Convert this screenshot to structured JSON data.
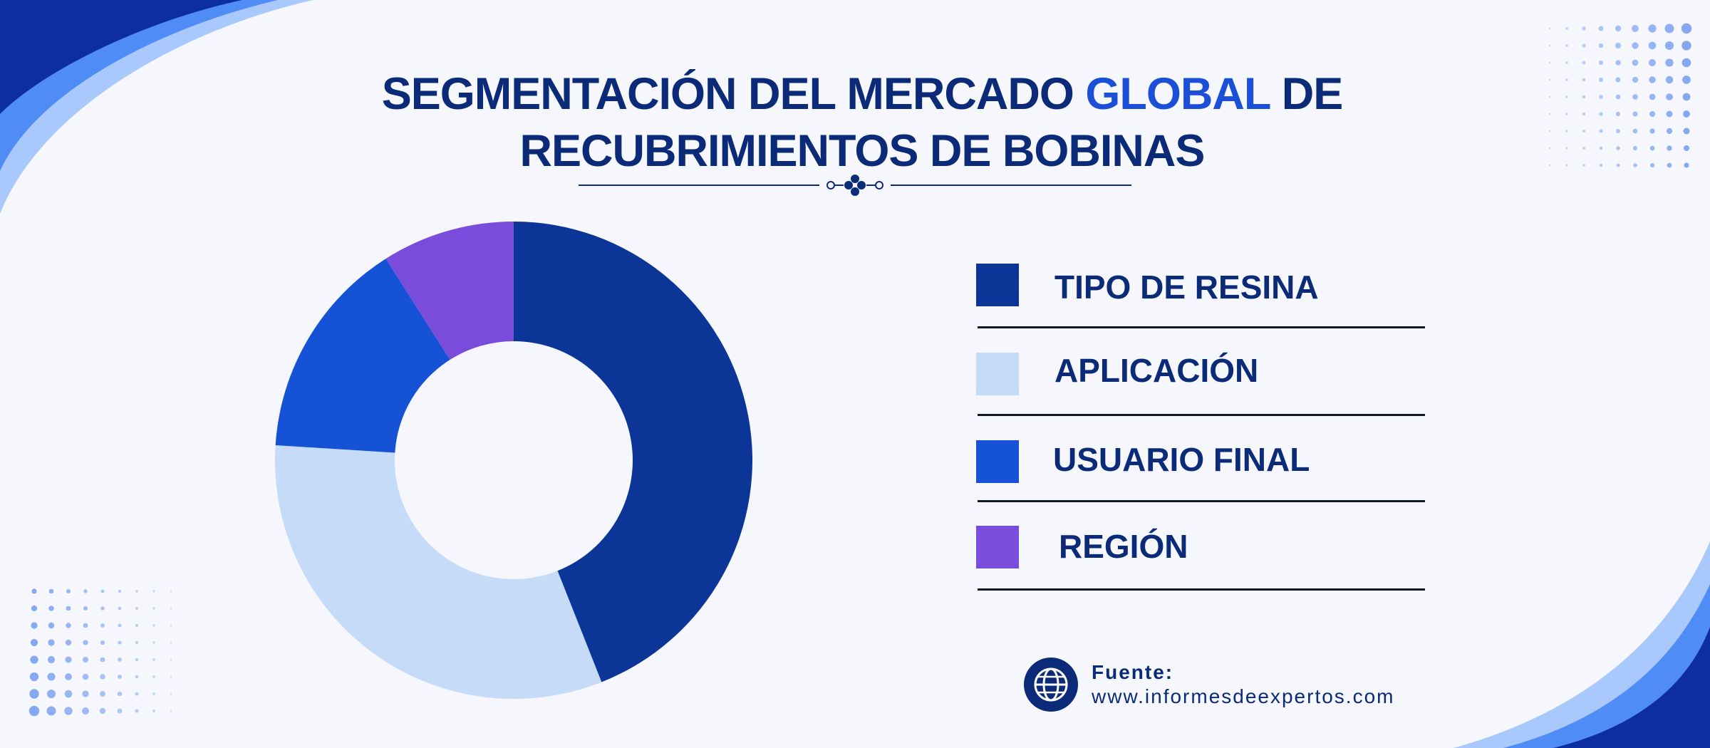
{
  "title": {
    "line1_before": "SEGMENTACIÓN DEL MERCADO ",
    "line1_highlight": "GLOBAL",
    "line1_after": " DE",
    "line2": "RECUBRIMIENTOS DE BOBINAS"
  },
  "source": {
    "label": "Fuente:",
    "url": "www.informesdeexpertos.com"
  },
  "colors": {
    "primary": "#0b2a78",
    "highlight": "#1c4fd8",
    "background": "#f5f7fc"
  },
  "chart_data": {
    "type": "pie",
    "variant": "donut",
    "title": "",
    "legend_position": "right",
    "categories": [
      "TIPO DE RESINA",
      "APLICACIÓN",
      "USUARIO FINAL",
      "REGIÓN"
    ],
    "values": [
      44,
      32,
      15,
      9
    ],
    "colors": [
      "#0b3597",
      "#c5dbf8",
      "#1552d6",
      "#7a4cdc"
    ]
  }
}
